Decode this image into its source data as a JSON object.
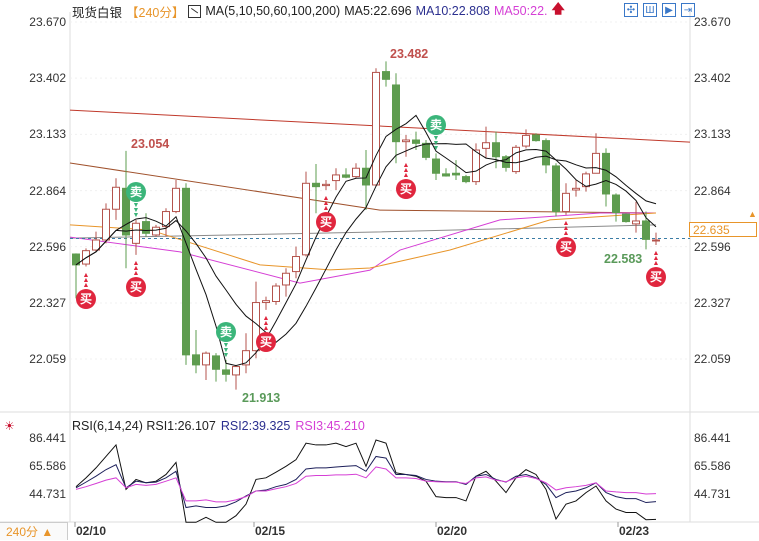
{
  "header": {
    "instrument": "现货白银",
    "period": "【240分】",
    "ma_icon": "ma-chart-icon",
    "ma_params": "MA(5,10,50,60,100,200)",
    "ma5": "MA5:22.696",
    "ma10": "MA10:22.808",
    "ma50": "MA50:22.",
    "arrow_icon": "red-up-arrow-icon",
    "tools": [
      "crosshair-icon",
      "bar-chart-icon",
      "play-chart-icon",
      "exit-icon"
    ],
    "tool_glyphs": [
      "✣",
      "Ш",
      "▶",
      "⇥"
    ]
  },
  "price_axis": {
    "labels": [
      "23.670",
      "23.402",
      "23.133",
      "22.864",
      "22.596",
      "22.327",
      "22.059"
    ],
    "current_price": "22.635"
  },
  "annotations": {
    "high1": "23.054",
    "high2": "23.482",
    "low1": "21.913",
    "low2": "22.583"
  },
  "signals": {
    "buy_label": "买",
    "sell_label": "卖",
    "buy_at": [
      1,
      6,
      19,
      25,
      33,
      49,
      58
    ],
    "sell_at": [
      6,
      15,
      36
    ]
  },
  "colors": {
    "up": "#b4534c",
    "down": "#5e9c4f",
    "ma5": "#111111",
    "ma10": "#111111",
    "ma50": "#d53fd5",
    "buy": "#e0263e",
    "sell": "#3bb57a",
    "current": "#e8952a"
  },
  "rsi": {
    "title": "RSI(6,14,24) RSI1:26.107",
    "rsi2": "RSI2:39.325",
    "rsi3": "RSI3:45.210",
    "icon": "indicator-settings-icon",
    "labels": [
      "86.441",
      "65.586",
      "44.731"
    ]
  },
  "x_axis": {
    "labels": [
      "02/10",
      "02/15",
      "02/20",
      "02/23"
    ],
    "label_candles": [
      1.7,
      19.6,
      37.8,
      56
    ]
  },
  "footer": {
    "period_button": "240分 ▲"
  },
  "chart_data": [
    {
      "type": "candlestick",
      "title": "现货白银 240分",
      "ylim": [
        21.85,
        23.67
      ],
      "ohlc": [
        [
          22.561,
          22.564,
          22.349,
          22.509
        ],
        [
          22.513,
          22.588,
          22.501,
          22.577
        ],
        [
          22.58,
          22.668,
          22.572,
          22.628
        ],
        [
          22.628,
          22.803,
          22.612,
          22.775
        ],
        [
          22.775,
          22.923,
          22.724,
          22.88
        ],
        [
          22.875,
          23.054,
          22.493,
          22.652
        ],
        [
          22.612,
          22.724,
          22.557,
          22.708
        ],
        [
          22.716,
          22.756,
          22.644,
          22.66
        ],
        [
          22.652,
          22.7,
          22.644,
          22.689
        ],
        [
          22.692,
          22.78,
          22.644,
          22.764
        ],
        [
          22.764,
          22.915,
          22.756,
          22.875
        ],
        [
          22.875,
          22.899,
          22.031,
          22.079
        ],
        [
          22.079,
          22.198,
          21.991,
          22.031
        ],
        [
          22.031,
          22.095,
          21.959,
          22.087
        ],
        [
          22.074,
          22.087,
          21.951,
          22.01
        ],
        [
          22.007,
          22.055,
          21.951,
          21.986
        ],
        [
          21.983,
          22.031,
          21.913,
          22.023
        ],
        [
          22.031,
          22.182,
          21.991,
          22.099
        ],
        [
          22.099,
          22.429,
          22.063,
          22.329
        ],
        [
          22.329,
          22.357,
          22.294,
          22.338
        ],
        [
          22.334,
          22.421,
          22.318,
          22.408
        ],
        [
          22.413,
          22.493,
          22.357,
          22.469
        ],
        [
          22.477,
          22.596,
          22.445,
          22.549
        ],
        [
          22.557,
          22.955,
          22.549,
          22.899
        ],
        [
          22.899,
          22.991,
          22.756,
          22.883
        ],
        [
          22.888,
          22.915,
          22.867,
          22.894
        ],
        [
          22.912,
          22.971,
          22.867,
          22.939
        ],
        [
          22.939,
          22.971,
          22.923,
          22.928
        ],
        [
          22.931,
          22.995,
          22.923,
          22.971
        ],
        [
          22.971,
          23.058,
          22.772,
          22.891
        ],
        [
          22.891,
          23.449,
          22.883,
          23.429
        ],
        [
          23.433,
          23.482,
          23.361,
          23.396
        ],
        [
          23.369,
          23.425,
          22.995,
          23.098
        ],
        [
          23.098,
          23.13,
          23.026,
          23.106
        ],
        [
          23.106,
          23.146,
          23.058,
          23.09
        ],
        [
          23.09,
          23.106,
          23.01,
          23.023
        ],
        [
          23.015,
          23.042,
          22.915,
          22.947
        ],
        [
          22.944,
          22.971,
          22.931,
          22.934
        ],
        [
          22.947,
          23.01,
          22.915,
          22.939
        ],
        [
          22.931,
          22.939,
          22.899,
          22.907
        ],
        [
          22.907,
          23.09,
          22.891,
          23.058
        ],
        [
          23.066,
          23.17,
          23.018,
          23.093
        ],
        [
          23.093,
          23.146,
          22.971,
          23.026
        ],
        [
          23.026,
          23.034,
          22.955,
          22.975
        ],
        [
          22.955,
          23.082,
          22.944,
          23.071
        ],
        [
          23.077,
          23.157,
          23.066,
          23.128
        ],
        [
          23.13,
          23.138,
          23.098,
          23.103
        ],
        [
          23.103,
          23.114,
          22.947,
          22.987
        ],
        [
          22.982,
          22.995,
          22.74,
          22.764
        ],
        [
          22.764,
          22.899,
          22.748,
          22.851
        ],
        [
          22.867,
          22.915,
          22.835,
          22.875
        ],
        [
          22.883,
          22.955,
          22.859,
          22.944
        ],
        [
          22.947,
          23.138,
          22.947,
          23.042
        ],
        [
          23.042,
          23.066,
          22.788,
          22.848
        ],
        [
          22.843,
          22.851,
          22.716,
          22.759
        ],
        [
          22.752,
          22.756,
          22.711,
          22.716
        ],
        [
          22.705,
          22.811,
          22.663,
          22.719
        ],
        [
          22.719,
          22.764,
          22.583,
          22.631
        ],
        [
          22.628,
          22.663,
          22.604,
          22.628
        ]
      ],
      "overlays": [
        {
          "color": "#c0392b",
          "points": [
            [
              -0.6,
              23.249
            ],
            [
              61.4,
              23.096
            ]
          ]
        },
        {
          "color": "#a0522d",
          "points": [
            [
              -0.6,
              22.996
            ],
            [
              30.4,
              22.771
            ],
            [
              58,
              22.757
            ]
          ]
        },
        {
          "color": "#8a8a8a",
          "points": [
            [
              -0.6,
              22.637
            ],
            [
              30,
              22.666
            ],
            [
              58,
              22.7
            ]
          ]
        },
        {
          "name": "MA50",
          "color": "#d53fd5",
          "points": [
            [
              -0.6,
              22.642
            ],
            [
              10.4,
              22.571
            ],
            [
              22.4,
              22.422
            ],
            [
              29.4,
              22.484
            ],
            [
              32.4,
              22.58
            ],
            [
              42.4,
              22.724
            ],
            [
              52.4,
              22.757
            ],
            [
              58,
              22.757
            ]
          ]
        },
        {
          "color": "#e8952a",
          "points": [
            [
              -0.6,
              22.7
            ],
            [
              7.4,
              22.676
            ],
            [
              18.4,
              22.509
            ],
            [
              25.4,
              22.485
            ],
            [
              29.4,
              22.494
            ],
            [
              37.4,
              22.58
            ],
            [
              47.4,
              22.724
            ],
            [
              58,
              22.757
            ]
          ]
        }
      ]
    },
    {
      "type": "line",
      "title": "RSI(6,14,24)",
      "ylim": [
        23,
        90
      ],
      "series": [
        {
          "name": "RSI1",
          "color": "#111111",
          "values": [
            50.4,
            57.0,
            64.4,
            72.9,
            81.5,
            48.4,
            55.8,
            53.3,
            54.5,
            59.5,
            68.5,
            23.9,
            23.9,
            27.6,
            23.9,
            23.9,
            28.8,
            37.4,
            55.8,
            57.0,
            61.2,
            65.6,
            70.5,
            82.8,
            81.5,
            81.5,
            82.8,
            80.3,
            82.8,
            65.6,
            85.2,
            82.8,
            60.7,
            59.5,
            58.2,
            54.5,
            43.0,
            42.3,
            42.3,
            39.8,
            58.2,
            61.9,
            54.5,
            46.0,
            57.0,
            63.1,
            59.5,
            48.4,
            26.3,
            37.4,
            39.8,
            46.0,
            50.9,
            39.8,
            33.7,
            31.2,
            31.2,
            25.8,
            26.1
          ]
        },
        {
          "name": "RSI2",
          "color": "#1c1f5a",
          "values": [
            49.6,
            53.8,
            58.2,
            63.1,
            66.8,
            49.6,
            54.5,
            53.3,
            53.8,
            57.0,
            61.9,
            34.9,
            36.1,
            34.9,
            34.9,
            36.1,
            39.1,
            43.5,
            47.2,
            47.9,
            50.4,
            52.1,
            55.8,
            63.6,
            64.4,
            64.4,
            65.1,
            65.6,
            66.1,
            61.9,
            72.9,
            71.7,
            59.5,
            59.5,
            58.7,
            55.8,
            54.5,
            54.1,
            54.1,
            52.1,
            58.2,
            59.5,
            55.8,
            53.8,
            58.2,
            59.5,
            57.0,
            52.1,
            42.3,
            46.0,
            47.2,
            49.6,
            53.3,
            46.0,
            43.0,
            41.5,
            41.5,
            38.6,
            39.3
          ]
        },
        {
          "name": "RSI3",
          "color": "#d53fd5",
          "values": [
            48.4,
            50.4,
            52.8,
            55.3,
            57.0,
            49.6,
            52.1,
            51.4,
            52.1,
            54.5,
            57.0,
            39.8,
            39.8,
            40.6,
            39.1,
            39.1,
            40.6,
            43.0,
            47.2,
            47.2,
            48.9,
            50.4,
            52.8,
            58.2,
            58.7,
            58.7,
            59.2,
            59.2,
            59.7,
            57.0,
            65.1,
            63.6,
            57.0,
            57.0,
            56.5,
            54.5,
            54.1,
            53.8,
            53.8,
            52.8,
            57.0,
            57.7,
            55.3,
            54.1,
            57.0,
            58.2,
            56.5,
            53.3,
            47.9,
            49.6,
            50.4,
            51.4,
            53.3,
            47.2,
            46.5,
            46.0,
            46.0,
            45.0,
            45.2
          ]
        }
      ]
    }
  ]
}
